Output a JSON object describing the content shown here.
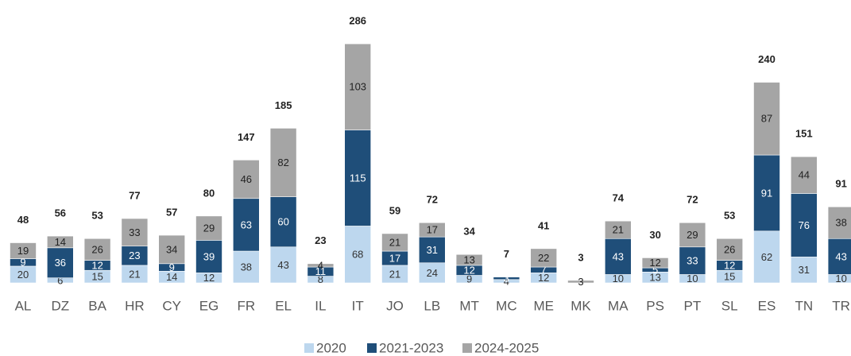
{
  "chart_data": {
    "type": "stacked_bar",
    "categories": [
      "AL",
      "DZ",
      "BA",
      "HR",
      "CY",
      "EG",
      "FR",
      "EL",
      "IL",
      "IT",
      "JO",
      "LB",
      "MT",
      "MC",
      "ME",
      "MK",
      "MA",
      "PS",
      "PT",
      "SL",
      "ES",
      "TN",
      "TR"
    ],
    "series": [
      {
        "name": "2020",
        "color": "#bdd7ee",
        "values": [
          20,
          6,
          15,
          21,
          14,
          12,
          38,
          43,
          8,
          68,
          21,
          24,
          9,
          4,
          12,
          0,
          10,
          13,
          10,
          15,
          62,
          31,
          10
        ]
      },
      {
        "name": "2021-2023",
        "color": "#1f4e79",
        "values": [
          9,
          36,
          12,
          23,
          9,
          39,
          63,
          60,
          11,
          115,
          17,
          31,
          12,
          3,
          7,
          0,
          43,
          5,
          33,
          12,
          91,
          76,
          43
        ]
      },
      {
        "name": "2024-2025",
        "color": "#a5a5a5",
        "values": [
          19,
          14,
          26,
          33,
          34,
          29,
          46,
          82,
          4,
          103,
          21,
          17,
          13,
          0,
          22,
          3,
          21,
          12,
          29,
          26,
          87,
          44,
          38
        ]
      }
    ],
    "totals": [
      48,
      56,
      53,
      77,
      57,
      80,
      147,
      185,
      23,
      286,
      59,
      72,
      34,
      7,
      41,
      3,
      74,
      30,
      72,
      53,
      240,
      151,
      91
    ],
    "legend": "bottom"
  }
}
